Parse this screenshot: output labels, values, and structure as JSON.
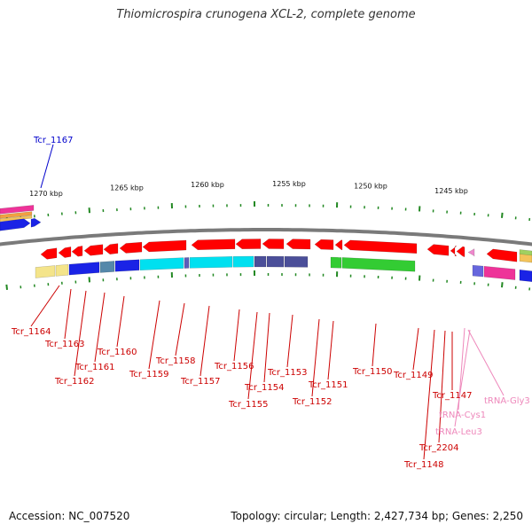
{
  "title": "Thiomicrospira crunogena XCL-2, complete genome",
  "footer": {
    "accession": "Accession: NC_007520",
    "summary": "Topology: circular; Length: 2,427,734 bp; Genes: 2,250"
  },
  "colors": {
    "gene": "#ff0000",
    "gene_label": "#cc0000",
    "highlight_label": "#0000cc",
    "trna_label": "#ee88bb",
    "backbone": "#7a7a7a",
    "tick": "#228822"
  },
  "kbp_labels": [
    "1270 kbp",
    "1265 kbp",
    "1260 kbp",
    "1255 kbp",
    "1250 kbp",
    "1245 kbp"
  ],
  "gene_labels": [
    {
      "text": "Tcr_1167",
      "kind": "highlight"
    },
    {
      "text": "Tcr_1164",
      "kind": "gene"
    },
    {
      "text": "Tcr_1163",
      "kind": "gene"
    },
    {
      "text": "Tcr_1162",
      "kind": "gene"
    },
    {
      "text": "Tcr_1161",
      "kind": "gene"
    },
    {
      "text": "Tcr_1160",
      "kind": "gene"
    },
    {
      "text": "Tcr_1159",
      "kind": "gene"
    },
    {
      "text": "Tcr_1158",
      "kind": "gene"
    },
    {
      "text": "Tcr_1157",
      "kind": "gene"
    },
    {
      "text": "Tcr_1156",
      "kind": "gene"
    },
    {
      "text": "Tcr_1155",
      "kind": "gene"
    },
    {
      "text": "Tcr_1154",
      "kind": "gene"
    },
    {
      "text": "Tcr_1153",
      "kind": "gene"
    },
    {
      "text": "Tcr_1152",
      "kind": "gene"
    },
    {
      "text": "Tcr_1151",
      "kind": "gene"
    },
    {
      "text": "Tcr_1150",
      "kind": "gene"
    },
    {
      "text": "Tcr_1149",
      "kind": "gene"
    },
    {
      "text": "Tcr_1147",
      "kind": "gene"
    },
    {
      "text": "Tcr_2204",
      "kind": "gene"
    },
    {
      "text": "Tcr_1148",
      "kind": "gene"
    },
    {
      "text": "tRNA-Gly3",
      "kind": "trna"
    },
    {
      "text": "tRNA-Cys1",
      "kind": "trna"
    },
    {
      "text": "tRNA-Leu3",
      "kind": "trna"
    }
  ]
}
